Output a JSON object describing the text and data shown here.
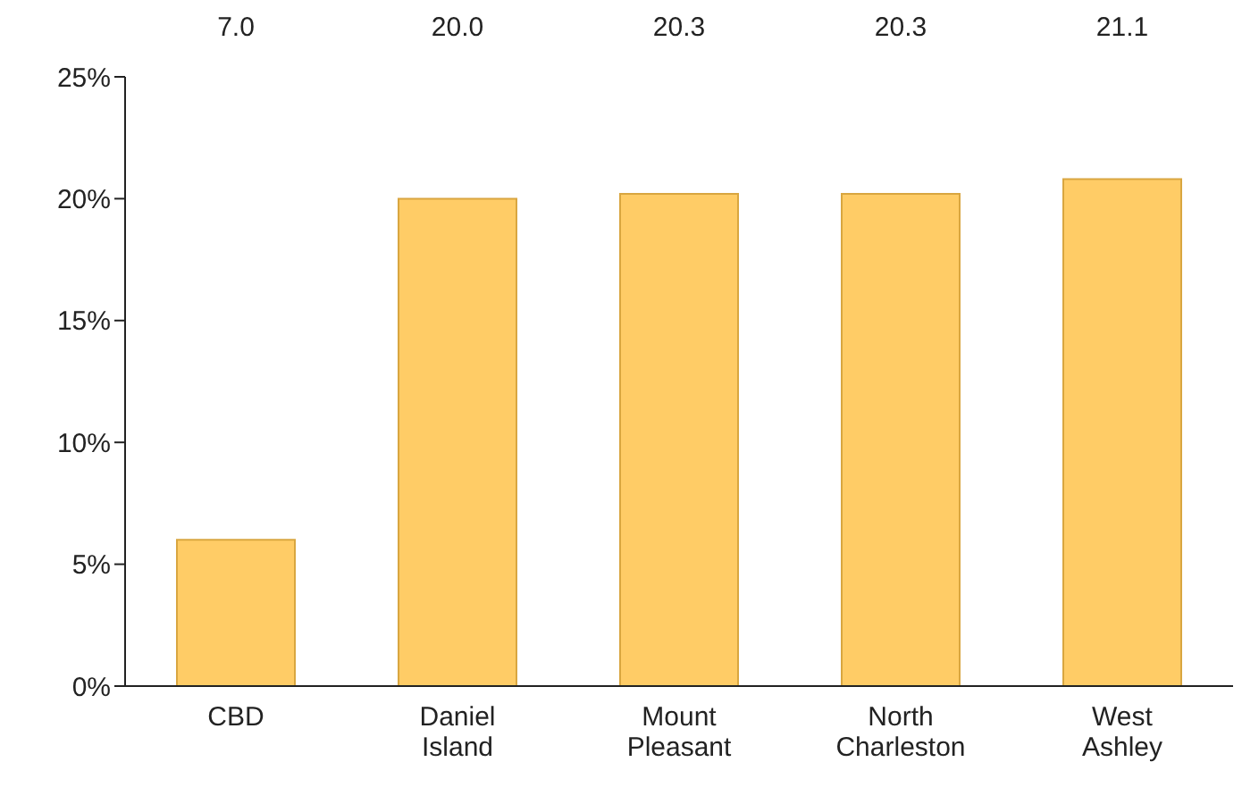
{
  "chart_data": {
    "type": "bar",
    "categories": [
      "CBD",
      "Daniel Island",
      "Mount Pleasant",
      "North Charleston",
      "West Ashley"
    ],
    "values": [
      6,
      20,
      20.2,
      20.2,
      20.8
    ],
    "annotations": [
      "7.0",
      "20.0",
      "20.3",
      "20.3",
      "21.1"
    ],
    "color": "#ffcc66",
    "ylim": [
      0,
      25
    ],
    "yticks": [
      {
        "value": 0,
        "label": "0%"
      },
      {
        "value": 5,
        "label": "5%"
      },
      {
        "value": 10,
        "label": "10%"
      },
      {
        "value": 15,
        "label": "15%"
      },
      {
        "value": 20,
        "label": "20%"
      },
      {
        "value": 25,
        "label": "25%"
      }
    ],
    "grid": false,
    "legend": false
  }
}
